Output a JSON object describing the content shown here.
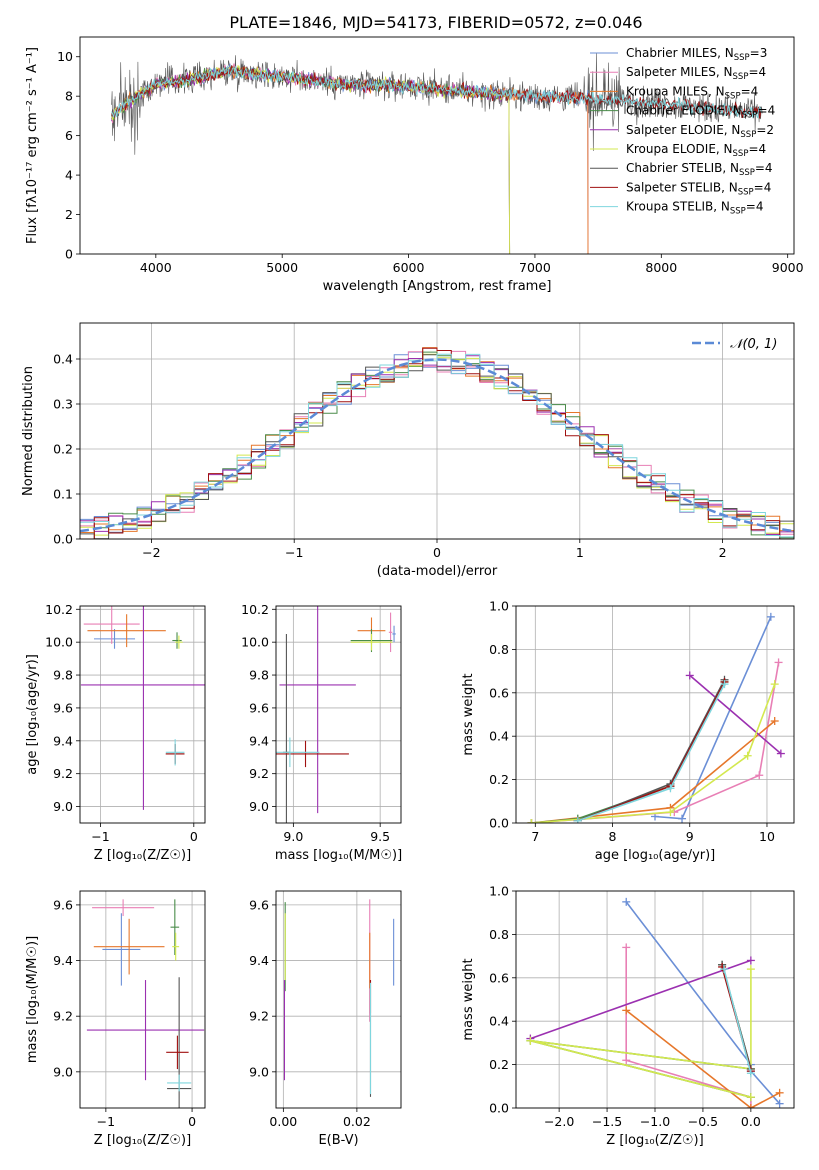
{
  "title": "PLATE=1846, MJD=54173, FIBERID=0572, z=0.046",
  "colors": {
    "Chabrier MILES": "#6b8fd6",
    "Salpeter MILES": "#e87fb5",
    "Kroupa MILES": "#e6772b",
    "Chabrier ELODIE": "#4a8c4a",
    "Salpeter ELODIE": "#9b30b0",
    "Kroupa ELODIE": "#d3e84f",
    "Chabrier STELIB": "#555555",
    "Salpeter STELIB": "#a01010",
    "Kroupa STELIB": "#7fd6de",
    "normal": "#5b8ad6"
  },
  "chart_data": [
    {
      "id": "spectrum",
      "type": "line",
      "title": "PLATE=1846, MJD=54173, FIBERID=0572, z=0.046",
      "xlabel": "wavelength [Angstrom, rest frame]",
      "ylabel": "Flux [fλ10⁻¹⁷ erg cm⁻² s⁻¹ A⁻¹]",
      "xlim": [
        3400,
        9050
      ],
      "ylim": [
        0,
        11
      ],
      "xticks": [
        4000,
        5000,
        6000,
        7000,
        8000,
        9000
      ],
      "yticks": [
        0,
        2,
        4,
        6,
        8,
        10
      ],
      "legend_position": "top-right",
      "legend": [
        {
          "name": "Chabrier MILES",
          "nssp": "3"
        },
        {
          "name": "Salpeter MILES",
          "nssp": "4"
        },
        {
          "name": "Kroupa MILES",
          "nssp": "4"
        },
        {
          "name": "Chabrier ELODIE",
          "nssp": "4"
        },
        {
          "name": "Salpeter ELODIE",
          "nssp": "2"
        },
        {
          "name": "Kroupa ELODIE",
          "nssp": "4"
        },
        {
          "name": "Chabrier STELIB",
          "nssp": "4"
        },
        {
          "name": "Salpeter STELIB",
          "nssp": "4"
        },
        {
          "name": "Kroupa STELIB",
          "nssp": "4"
        }
      ],
      "data_points": [
        [
          3650,
          7.0
        ],
        [
          3800,
          7.8
        ],
        [
          4000,
          8.6
        ],
        [
          4300,
          8.9
        ],
        [
          4600,
          9.3
        ],
        [
          5000,
          9.0
        ],
        [
          5500,
          8.6
        ],
        [
          6000,
          8.5
        ],
        [
          6500,
          8.2
        ],
        [
          7000,
          8.0
        ],
        [
          7400,
          7.9
        ],
        [
          8000,
          7.6
        ],
        [
          8700,
          7.2
        ]
      ],
      "grid": false
    },
    {
      "id": "histogram",
      "type": "bar",
      "xlabel": "(data-model)/error",
      "ylabel": "Normed distribution",
      "xlim": [
        -2.5,
        2.5
      ],
      "ylim": [
        0,
        0.48
      ],
      "xticks": [
        -2,
        -1,
        0,
        1,
        2
      ],
      "yticks": [
        0.0,
        0.1,
        0.2,
        0.3,
        0.4
      ],
      "legend_position": "top-right",
      "legend": [
        "𝒩(0, 1)"
      ],
      "bin_width": 0.1,
      "grid": true
    },
    {
      "id": "age_vs_Z",
      "type": "scatter",
      "xlabel": "Z [log₁₀(Z/Z☉)]",
      "ylabel": "age  [log₁₀(age/yr)]",
      "xlim": [
        -1.22,
        0.12
      ],
      "ylim": [
        8.9,
        10.22
      ],
      "xticks": [
        -1,
        0
      ],
      "yticks": [
        9.0,
        9.2,
        9.4,
        9.6,
        9.8,
        10.0,
        10.2
      ],
      "points": [
        {
          "model": "Chabrier MILES",
          "x": -0.85,
          "y": 10.02,
          "xerr": 0.22,
          "yerr": 0.06
        },
        {
          "model": "Salpeter MILES",
          "x": -0.88,
          "y": 10.11,
          "xerr": 0.3,
          "yerr": 0.12
        },
        {
          "model": "Kroupa MILES",
          "x": -0.72,
          "y": 10.07,
          "xerr": 0.42,
          "yerr": 0.1
        },
        {
          "model": "Chabrier ELODIE",
          "x": -0.18,
          "y": 10.01,
          "xerr": 0.05,
          "yerr": 0.05
        },
        {
          "model": "Salpeter ELODIE",
          "x": -0.54,
          "y": 9.74,
          "xerr": 0.67,
          "yerr": 0.76
        },
        {
          "model": "Kroupa ELODIE",
          "x": -0.16,
          "y": 10.0,
          "xerr": 0.04,
          "yerr": 0.04
        },
        {
          "model": "Chabrier STELIB",
          "x": -0.2,
          "y": 9.32,
          "xerr": 0.1,
          "yerr": 0.06
        },
        {
          "model": "Salpeter STELIB",
          "x": -0.2,
          "y": 9.32,
          "xerr": 0.1,
          "yerr": 0.06
        },
        {
          "model": "Kroupa STELIB",
          "x": -0.2,
          "y": 9.33,
          "xerr": 0.1,
          "yerr": 0.08
        }
      ],
      "grid": true
    },
    {
      "id": "age_vs_mass",
      "type": "scatter",
      "xlabel": "mass [log₁₀(M/M☉)]",
      "ylabel": "",
      "xlim": [
        8.9,
        9.62
      ],
      "ylim": [
        8.9,
        10.22
      ],
      "xticks": [
        9.0,
        9.5
      ],
      "yticks": [
        9.0,
        9.2,
        9.4,
        9.6,
        9.8,
        10.0,
        10.2
      ],
      "points": [
        {
          "model": "Chabrier MILES",
          "x": 9.58,
          "y": 10.05,
          "xerr": 0.01,
          "yerr": 0.05
        },
        {
          "model": "Salpeter MILES",
          "x": 9.56,
          "y": 10.06,
          "xerr": 0.01,
          "yerr": 0.12
        },
        {
          "model": "Kroupa MILES",
          "x": 9.45,
          "y": 10.07,
          "xerr": 0.08,
          "yerr": 0.08
        },
        {
          "model": "Chabrier ELODIE",
          "x": 9.45,
          "y": 10.01,
          "xerr": 0.12,
          "yerr": 0.07
        },
        {
          "model": "Salpeter ELODIE",
          "x": 9.14,
          "y": 9.74,
          "xerr": 0.22,
          "yerr": 0.78
        },
        {
          "model": "Kroupa ELODIE",
          "x": 9.45,
          "y": 10.0,
          "xerr": 0.12,
          "yerr": 0.05
        },
        {
          "model": "Chabrier STELIB",
          "x": 8.96,
          "y": 9.33,
          "xerr": 0.02,
          "yerr": 0.72
        },
        {
          "model": "Salpeter STELIB",
          "x": 9.07,
          "y": 9.32,
          "xerr": 0.25,
          "yerr": 0.08
        },
        {
          "model": "Kroupa STELIB",
          "x": 8.98,
          "y": 9.33,
          "xerr": 0.17,
          "yerr": 0.09
        }
      ],
      "grid": true
    },
    {
      "id": "weight_vs_age",
      "type": "line",
      "xlabel": "age  [log₁₀(age/yr)]",
      "ylabel": "mass weight",
      "xlim": [
        6.75,
        10.35
      ],
      "ylim": [
        0,
        1.0
      ],
      "xticks": [
        7,
        8,
        9,
        10
      ],
      "yticks": [
        0.0,
        0.2,
        0.4,
        0.6,
        0.8,
        1.0
      ],
      "series": [
        {
          "model": "Chabrier MILES",
          "x": [
            8.55,
            8.9,
            10.05
          ],
          "y": [
            0.03,
            0.02,
            0.95
          ]
        },
        {
          "model": "Salpeter MILES",
          "x": [
            6.95,
            8.8,
            9.9,
            10.15
          ],
          "y": [
            0.0,
            0.05,
            0.22,
            0.74
          ]
        },
        {
          "model": "Kroupa MILES",
          "x": [
            6.95,
            8.75,
            10.1
          ],
          "y": [
            0.0,
            0.07,
            0.47
          ]
        },
        {
          "model": "Chabrier ELODIE",
          "x": [
            6.95,
            7.55,
            8.75,
            9.45
          ],
          "y": [
            0.0,
            0.02,
            0.17,
            0.65
          ]
        },
        {
          "model": "Salpeter ELODIE",
          "x": [
            9.0,
            10.18
          ],
          "y": [
            0.68,
            0.32
          ]
        },
        {
          "model": "Kroupa ELODIE",
          "x": [
            6.95,
            8.75,
            9.75,
            10.1
          ],
          "y": [
            0.0,
            0.05,
            0.31,
            0.64
          ]
        },
        {
          "model": "Chabrier STELIB",
          "x": [
            7.55,
            8.75,
            9.45
          ],
          "y": [
            0.01,
            0.18,
            0.66
          ]
        },
        {
          "model": "Salpeter STELIB",
          "x": [
            7.55,
            8.75,
            9.45
          ],
          "y": [
            0.01,
            0.17,
            0.65
          ]
        },
        {
          "model": "Kroupa STELIB",
          "x": [
            7.55,
            8.75,
            9.45
          ],
          "y": [
            0.01,
            0.16,
            0.64
          ]
        }
      ],
      "grid": true
    },
    {
      "id": "mass_vs_Z",
      "type": "scatter",
      "xlabel": "Z [log₁₀(Z/Z☉)]",
      "ylabel": "mass [log₁₀(M/M☉)]",
      "xlim": [
        -1.3,
        0.15
      ],
      "ylim": [
        8.87,
        9.65
      ],
      "xticks": [
        -1,
        0
      ],
      "yticks": [
        9.0,
        9.2,
        9.4,
        9.6
      ],
      "points": [
        {
          "model": "Chabrier MILES",
          "x": -0.82,
          "y": 9.44,
          "xerr": 0.22,
          "yerr": 0.13
        },
        {
          "model": "Salpeter MILES",
          "x": -0.8,
          "y": 9.59,
          "xerr": 0.36,
          "yerr": 0.03
        },
        {
          "model": "Kroupa MILES",
          "x": -0.73,
          "y": 9.45,
          "xerr": 0.41,
          "yerr": 0.1
        },
        {
          "model": "Chabrier ELODIE",
          "x": -0.2,
          "y": 9.52,
          "xerr": 0.05,
          "yerr": 0.1
        },
        {
          "model": "Salpeter ELODIE",
          "x": -0.54,
          "y": 9.15,
          "xerr": 0.68,
          "yerr": 0.18
        },
        {
          "model": "Kroupa ELODIE",
          "x": -0.19,
          "y": 9.45,
          "xerr": 0.04,
          "yerr": 0.05
        },
        {
          "model": "Chabrier STELIB",
          "x": -0.15,
          "y": 8.94,
          "xerr": 0.14,
          "yerr": 0.4
        },
        {
          "model": "Salpeter STELIB",
          "x": -0.17,
          "y": 9.07,
          "xerr": 0.13,
          "yerr": 0.06
        },
        {
          "model": "Kroupa STELIB",
          "x": -0.15,
          "y": 8.96,
          "xerr": 0.14,
          "yerr": 0.03
        }
      ],
      "grid": true
    },
    {
      "id": "mass_vs_ebv",
      "type": "scatter",
      "xlabel": "E(B-V)",
      "ylabel": "",
      "xlim": [
        -0.002,
        0.032
      ],
      "ylim": [
        8.87,
        9.65
      ],
      "xticks": [
        0.0,
        0.02
      ],
      "yticks": [
        9.0,
        9.2,
        9.4,
        9.6
      ],
      "points": [
        {
          "model": "Chabrier MILES",
          "x": 0.03,
          "y": 9.43,
          "xerr": 0.0,
          "yerr": 0.12
        },
        {
          "model": "Salpeter MILES",
          "x": 0.0235,
          "y": 9.4,
          "xerr": 0.0,
          "yerr": 0.22
        },
        {
          "model": "Kroupa MILES",
          "x": 0.0235,
          "y": 9.4,
          "xerr": 0.0,
          "yerr": 0.1
        },
        {
          "model": "Chabrier ELODIE",
          "x": 0.0005,
          "y": 9.45,
          "xerr": 0.0,
          "yerr": 0.16
        },
        {
          "model": "Salpeter ELODIE",
          "x": 0.0003,
          "y": 9.15,
          "xerr": 0.0,
          "yerr": 0.18
        },
        {
          "model": "Kroupa ELODIE",
          "x": 0.0005,
          "y": 9.45,
          "xerr": 0.0,
          "yerr": 0.12
        },
        {
          "model": "Chabrier STELIB",
          "x": 0.0237,
          "y": 9.12,
          "xerr": 0.0,
          "yerr": 0.21
        },
        {
          "model": "Salpeter STELIB",
          "x": 0.0237,
          "y": 9.27,
          "xerr": 0.0,
          "yerr": 0.06
        },
        {
          "model": "Kroupa STELIB",
          "x": 0.0237,
          "y": 9.12,
          "xerr": 0.0,
          "yerr": 0.2
        }
      ],
      "grid": true
    },
    {
      "id": "weight_vs_Z",
      "type": "line",
      "xlabel": "Z [log₁₀(Z/Z☉)]",
      "ylabel": "mass weight",
      "xlim": [
        -2.45,
        0.45
      ],
      "ylim": [
        0,
        1.0
      ],
      "xticks": [
        -2.0,
        -1.5,
        -1.0,
        -0.5,
        0.0
      ],
      "yticks": [
        0.0,
        0.2,
        0.4,
        0.6,
        0.8,
        1.0
      ],
      "series": [
        {
          "model": "Chabrier MILES",
          "x": [
            -1.3,
            0.0,
            0.0,
            0.3
          ],
          "y": [
            0.95,
            0.2,
            0.17,
            0.02
          ]
        },
        {
          "model": "Salpeter MILES",
          "x": [
            -1.3,
            -1.3,
            0.0,
            0.0
          ],
          "y": [
            0.74,
            0.22,
            0.05,
            0.0
          ]
        },
        {
          "model": "Kroupa MILES",
          "x": [
            -1.3,
            0.0,
            0.3
          ],
          "y": [
            0.45,
            0.0,
            0.07
          ]
        },
        {
          "model": "Chabrier ELODIE",
          "x": [
            -0.3,
            0.0,
            -2.3,
            0.0
          ],
          "y": [
            0.66,
            0.18,
            0.31,
            0.05
          ]
        },
        {
          "model": "Salpeter ELODIE",
          "x": [
            -2.3,
            0.0
          ],
          "y": [
            0.32,
            0.68
          ]
        },
        {
          "model": "Kroupa ELODIE",
          "x": [
            0.0,
            0.0,
            -2.3,
            0.0
          ],
          "y": [
            0.64,
            0.18,
            0.31,
            0.05
          ]
        },
        {
          "model": "Chabrier STELIB",
          "x": [
            -0.3,
            0.0
          ],
          "y": [
            0.66,
            0.18
          ]
        },
        {
          "model": "Salpeter STELIB",
          "x": [
            -0.3,
            0.0
          ],
          "y": [
            0.65,
            0.17
          ]
        },
        {
          "model": "Kroupa STELIB",
          "x": [
            -0.28,
            0.0
          ],
          "y": [
            0.64,
            0.16
          ]
        }
      ],
      "grid": true
    }
  ]
}
